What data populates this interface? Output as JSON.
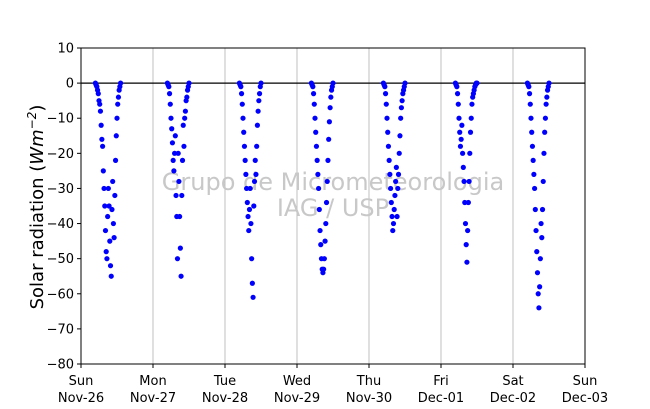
{
  "chart_data": {
    "type": "scatter",
    "ylabel": "Solar radiation (Wm⁻²)",
    "ylabel_parts": {
      "main": "Solar radiation (",
      "unit": "Wm",
      "exp": "−2",
      "close": ")"
    },
    "ylim": [
      -80,
      10
    ],
    "y_ticks": [
      10,
      0,
      -10,
      -20,
      -30,
      -40,
      -50,
      -60,
      -70,
      -80
    ],
    "y_tick_labels": [
      "10",
      "0",
      "−10",
      "−20",
      "−30",
      "−40",
      "−50",
      "−60",
      "−70",
      "−80"
    ],
    "xlim_days": [
      0,
      7
    ],
    "x_ticks": [
      {
        "day": 0,
        "line1": "Sun",
        "line2": "Nov-26"
      },
      {
        "day": 1,
        "line1": "Mon",
        "line2": "Nov-27"
      },
      {
        "day": 2,
        "line1": "Tue",
        "line2": "Nov-28"
      },
      {
        "day": 3,
        "line1": "Wed",
        "line2": "Nov-29"
      },
      {
        "day": 4,
        "line1": "Thu",
        "line2": "Nov-30"
      },
      {
        "day": 5,
        "line1": "Fri",
        "line2": "Dec-01"
      },
      {
        "day": 6,
        "line1": "Sat",
        "line2": "Dec-02"
      },
      {
        "day": 7,
        "line1": "Sun",
        "line2": "Dec-03"
      }
    ],
    "grid": "vertical",
    "zero_line": true,
    "marker_color": "#0000ff",
    "watermark": [
      "Grupo de Micrometeorologia",
      "IAG / USP"
    ],
    "series": [
      {
        "points": [
          [
            0.2,
            0
          ],
          [
            0.21,
            -0.5
          ],
          [
            0.22,
            -1
          ],
          [
            0.23,
            -2
          ],
          [
            0.24,
            -3
          ],
          [
            0.25,
            -5
          ],
          [
            0.26,
            -6
          ],
          [
            0.27,
            -8
          ],
          [
            0.28,
            -12
          ],
          [
            0.29,
            -16
          ],
          [
            0.3,
            -18
          ],
          [
            0.31,
            -25
          ],
          [
            0.32,
            -30
          ],
          [
            0.33,
            -35
          ],
          [
            0.34,
            -42
          ],
          [
            0.35,
            -48
          ],
          [
            0.36,
            -50
          ],
          [
            0.37,
            -38
          ],
          [
            0.38,
            -30
          ],
          [
            0.39,
            -35
          ],
          [
            0.4,
            -45
          ],
          [
            0.41,
            -52
          ],
          [
            0.42,
            -55
          ],
          [
            0.43,
            -36
          ],
          [
            0.44,
            -28
          ],
          [
            0.45,
            -40
          ],
          [
            0.46,
            -44
          ],
          [
            0.47,
            -32
          ],
          [
            0.48,
            -22
          ],
          [
            0.49,
            -15
          ],
          [
            0.5,
            -10
          ],
          [
            0.51,
            -6
          ],
          [
            0.52,
            -4
          ],
          [
            0.53,
            -2
          ],
          [
            0.54,
            -1
          ],
          [
            0.55,
            0
          ]
        ]
      },
      {
        "points": [
          [
            1.2,
            0
          ],
          [
            1.21,
            -0.5
          ],
          [
            1.22,
            -1
          ],
          [
            1.23,
            -3
          ],
          [
            1.24,
            -6
          ],
          [
            1.25,
            -10
          ],
          [
            1.26,
            -13
          ],
          [
            1.27,
            -17
          ],
          [
            1.28,
            -22
          ],
          [
            1.29,
            -25
          ],
          [
            1.3,
            -20
          ],
          [
            1.31,
            -15
          ],
          [
            1.32,
            -32
          ],
          [
            1.33,
            -38
          ],
          [
            1.34,
            -50
          ],
          [
            1.35,
            -20
          ],
          [
            1.36,
            -28
          ],
          [
            1.37,
            -38
          ],
          [
            1.38,
            -47
          ],
          [
            1.39,
            -55
          ],
          [
            1.4,
            -32
          ],
          [
            1.41,
            -22
          ],
          [
            1.42,
            -12
          ],
          [
            1.43,
            -18
          ],
          [
            1.44,
            -10
          ],
          [
            1.45,
            -8
          ],
          [
            1.46,
            -5
          ],
          [
            1.47,
            -4
          ],
          [
            1.48,
            -2
          ],
          [
            1.49,
            -1
          ],
          [
            1.5,
            0
          ]
        ]
      },
      {
        "points": [
          [
            2.2,
            0
          ],
          [
            2.21,
            -0.5
          ],
          [
            2.22,
            -1
          ],
          [
            2.23,
            -3
          ],
          [
            2.24,
            -6
          ],
          [
            2.25,
            -10
          ],
          [
            2.26,
            -14
          ],
          [
            2.27,
            -18
          ],
          [
            2.28,
            -22
          ],
          [
            2.29,
            -26
          ],
          [
            2.3,
            -30
          ],
          [
            2.31,
            -34
          ],
          [
            2.32,
            -38
          ],
          [
            2.33,
            -42
          ],
          [
            2.34,
            -36
          ],
          [
            2.35,
            -30
          ],
          [
            2.36,
            -40
          ],
          [
            2.37,
            -50
          ],
          [
            2.38,
            -57
          ],
          [
            2.39,
            -61
          ],
          [
            2.4,
            -35
          ],
          [
            2.41,
            -28
          ],
          [
            2.42,
            -22
          ],
          [
            2.43,
            -26
          ],
          [
            2.44,
            -18
          ],
          [
            2.45,
            -12
          ],
          [
            2.46,
            -8
          ],
          [
            2.47,
            -5
          ],
          [
            2.48,
            -3
          ],
          [
            2.49,
            -1
          ],
          [
            2.5,
            0
          ]
        ]
      },
      {
        "points": [
          [
            3.2,
            0
          ],
          [
            3.21,
            -0.5
          ],
          [
            3.22,
            -1
          ],
          [
            3.23,
            -3
          ],
          [
            3.24,
            -6
          ],
          [
            3.25,
            -10
          ],
          [
            3.26,
            -14
          ],
          [
            3.27,
            -18
          ],
          [
            3.28,
            -22
          ],
          [
            3.29,
            -26
          ],
          [
            3.3,
            -30
          ],
          [
            3.31,
            -36
          ],
          [
            3.32,
            -42
          ],
          [
            3.33,
            -46
          ],
          [
            3.34,
            -50
          ],
          [
            3.35,
            -53
          ],
          [
            3.36,
            -54
          ],
          [
            3.37,
            -53
          ],
          [
            3.38,
            -50
          ],
          [
            3.39,
            -45
          ],
          [
            3.4,
            -40
          ],
          [
            3.41,
            -34
          ],
          [
            3.42,
            -28
          ],
          [
            3.43,
            -22
          ],
          [
            3.44,
            -16
          ],
          [
            3.45,
            -11
          ],
          [
            3.46,
            -7
          ],
          [
            3.47,
            -4
          ],
          [
            3.48,
            -2
          ],
          [
            3.49,
            -1
          ],
          [
            3.5,
            0
          ]
        ]
      },
      {
        "points": [
          [
            4.2,
            0
          ],
          [
            4.21,
            -0.5
          ],
          [
            4.22,
            -1
          ],
          [
            4.23,
            -3
          ],
          [
            4.24,
            -6
          ],
          [
            4.25,
            -10
          ],
          [
            4.26,
            -14
          ],
          [
            4.27,
            -18
          ],
          [
            4.28,
            -22
          ],
          [
            4.29,
            -26
          ],
          [
            4.3,
            -30
          ],
          [
            4.31,
            -34
          ],
          [
            4.32,
            -38
          ],
          [
            4.33,
            -42
          ],
          [
            4.34,
            -40
          ],
          [
            4.35,
            -36
          ],
          [
            4.36,
            -32
          ],
          [
            4.37,
            -28
          ],
          [
            4.38,
            -24
          ],
          [
            4.39,
            -38
          ],
          [
            4.4,
            -30
          ],
          [
            4.41,
            -26
          ],
          [
            4.42,
            -20
          ],
          [
            4.43,
            -15
          ],
          [
            4.44,
            -10
          ],
          [
            4.45,
            -7
          ],
          [
            4.46,
            -5
          ],
          [
            4.47,
            -3
          ],
          [
            4.48,
            -2
          ],
          [
            4.49,
            -1
          ],
          [
            4.5,
            0
          ]
        ]
      },
      {
        "points": [
          [
            5.2,
            0
          ],
          [
            5.21,
            -0.5
          ],
          [
            5.22,
            -1
          ],
          [
            5.23,
            -3
          ],
          [
            5.24,
            -6
          ],
          [
            5.25,
            -10
          ],
          [
            5.26,
            -14
          ],
          [
            5.27,
            -18
          ],
          [
            5.28,
            -16
          ],
          [
            5.29,
            -12
          ],
          [
            5.3,
            -20
          ],
          [
            5.31,
            -24
          ],
          [
            5.32,
            -28
          ],
          [
            5.33,
            -34
          ],
          [
            5.34,
            -40
          ],
          [
            5.35,
            -46
          ],
          [
            5.36,
            -51
          ],
          [
            5.37,
            -42
          ],
          [
            5.38,
            -34
          ],
          [
            5.39,
            -28
          ],
          [
            5.4,
            -20
          ],
          [
            5.41,
            -14
          ],
          [
            5.42,
            -10
          ],
          [
            5.43,
            -6
          ],
          [
            5.44,
            -4
          ],
          [
            5.45,
            -3
          ],
          [
            5.46,
            -2
          ],
          [
            5.47,
            -1
          ],
          [
            5.48,
            -0.5
          ],
          [
            5.49,
            0
          ],
          [
            5.5,
            0
          ]
        ]
      },
      {
        "points": [
          [
            6.2,
            0
          ],
          [
            6.21,
            -0.5
          ],
          [
            6.22,
            -1
          ],
          [
            6.23,
            -3
          ],
          [
            6.24,
            -6
          ],
          [
            6.25,
            -10
          ],
          [
            6.26,
            -14
          ],
          [
            6.27,
            -18
          ],
          [
            6.28,
            -22
          ],
          [
            6.29,
            -26
          ],
          [
            6.3,
            -30
          ],
          [
            6.31,
            -36
          ],
          [
            6.32,
            -42
          ],
          [
            6.33,
            -48
          ],
          [
            6.34,
            -54
          ],
          [
            6.35,
            -60
          ],
          [
            6.36,
            -64
          ],
          [
            6.37,
            -58
          ],
          [
            6.38,
            -50
          ],
          [
            6.39,
            -40
          ],
          [
            6.4,
            -44
          ],
          [
            6.41,
            -36
          ],
          [
            6.42,
            -28
          ],
          [
            6.43,
            -20
          ],
          [
            6.44,
            -14
          ],
          [
            6.45,
            -10
          ],
          [
            6.46,
            -6
          ],
          [
            6.47,
            -4
          ],
          [
            6.48,
            -2
          ],
          [
            6.49,
            -1
          ],
          [
            6.5,
            0
          ]
        ]
      }
    ]
  }
}
